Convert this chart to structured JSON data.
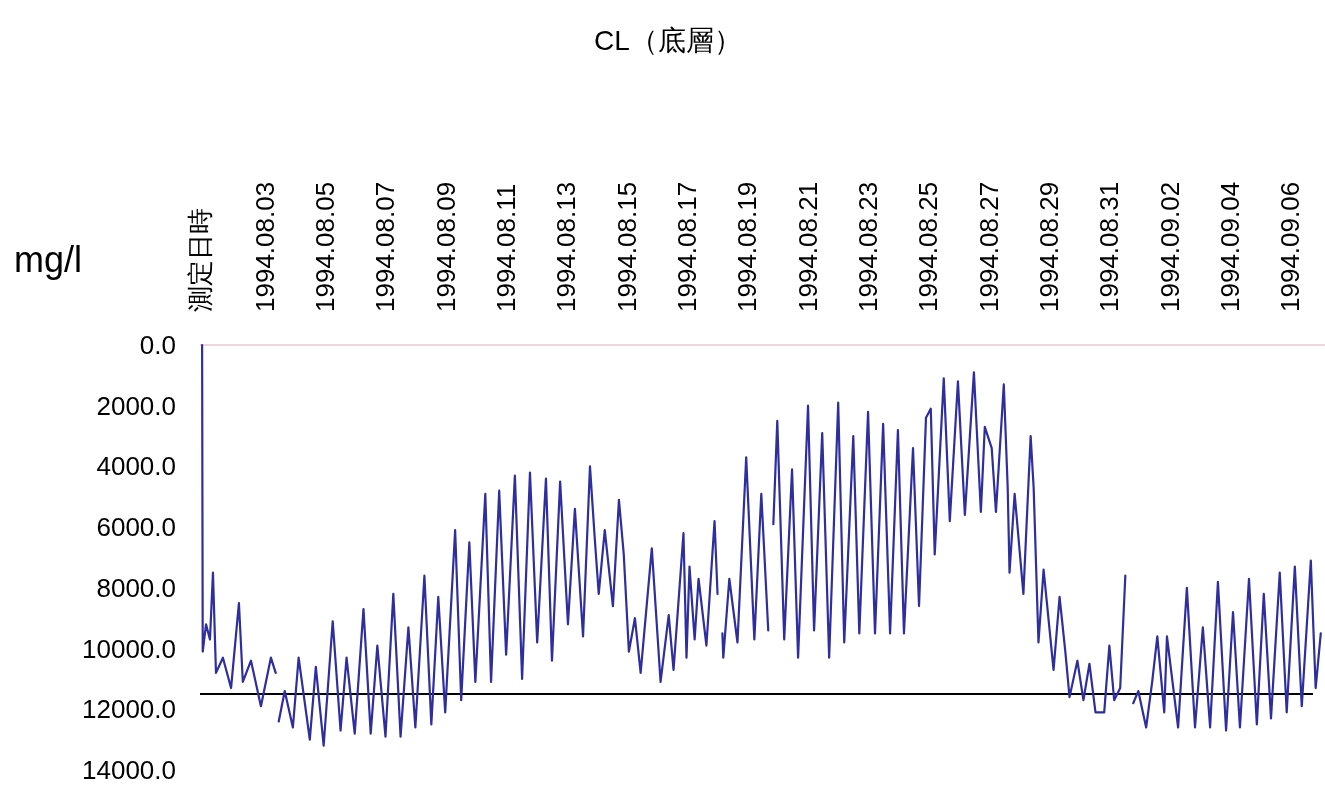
{
  "chart_data": {
    "type": "line",
    "title": "CL（底層）",
    "ylabel": "mg/l",
    "xlim": [
      "1994-07-31T20:24",
      "1994-09-07T03:36"
    ],
    "xticks": [
      {
        "value": "1994-07-31T20:24",
        "label": "測定日時"
      },
      {
        "value": "1994-08-03",
        "label": "1994.08.03"
      },
      {
        "value": "1994-08-05",
        "label": "1994.08.05"
      },
      {
        "value": "1994-08-07",
        "label": "1994.08.07"
      },
      {
        "value": "1994-08-09",
        "label": "1994.08.09"
      },
      {
        "value": "1994-08-11",
        "label": "1994.08.11"
      },
      {
        "value": "1994-08-13",
        "label": "1994.08.13"
      },
      {
        "value": "1994-08-15",
        "label": "1994.08.15"
      },
      {
        "value": "1994-08-17",
        "label": "1994.08.17"
      },
      {
        "value": "1994-08-19",
        "label": "1994.08.19"
      },
      {
        "value": "1994-08-21",
        "label": "1994.08.21"
      },
      {
        "value": "1994-08-23",
        "label": "1994.08.23"
      },
      {
        "value": "1994-08-25",
        "label": "1994.08.25"
      },
      {
        "value": "1994-08-27",
        "label": "1994.08.27"
      },
      {
        "value": "1994-08-29",
        "label": "1994.08.29"
      },
      {
        "value": "1994-08-31",
        "label": "1994.08.31"
      },
      {
        "value": "1994-09-02",
        "label": "1994.09.02"
      },
      {
        "value": "1994-09-04",
        "label": "1994.09.04"
      },
      {
        "value": "1994-09-06",
        "label": "1994.09.06"
      }
    ],
    "ylim": [
      14000,
      0
    ],
    "yticks": [
      {
        "value": 0,
        "label": "0.0"
      },
      {
        "value": 2000,
        "label": "2000.0"
      },
      {
        "value": 4000,
        "label": "4000.0"
      },
      {
        "value": 6000,
        "label": "6000.0"
      },
      {
        "value": 8000,
        "label": "8000.0"
      },
      {
        "value": 10000,
        "label": "10000.0"
      },
      {
        "value": 12000,
        "label": "12000.0"
      },
      {
        "value": 14000,
        "label": "14000.0"
      }
    ],
    "ref_lines": [
      {
        "axis": "y",
        "value": 11500,
        "color": "#000000"
      }
    ],
    "marker": "none",
    "line_style": "solid",
    "series": [
      {
        "color": "#2e2e9e",
        "x": [
          "1994-07-31T22:05",
          "1994-07-31T22:34",
          "1994-08-01T01:12",
          "1994-08-01T04:19",
          "1994-08-01T06:43",
          "1994-08-01T09:07",
          "1994-08-01T14:38",
          "1994-08-01T21:07",
          "1994-08-02T03:22",
          "1994-08-02T06:29",
          "1994-08-02T12:58",
          "1994-08-02T20:53",
          "1994-08-03T04:48",
          "1994-08-03T08:38",
          "1994-08-03T09:50",
          "1994-08-03T11:02",
          "1994-08-03T15:50",
          "1994-08-03T22:19",
          "1994-08-04T02:53",
          "1994-08-04T11:46",
          "1994-08-04T16:34",
          "1994-08-04T22:48",
          "1994-08-05T06:00",
          "1994-08-05T12:14",
          "1994-08-05T17:02",
          "1994-08-05T23:31",
          "1994-08-06T06:29",
          "1994-08-06T12:14",
          "1994-08-06T17:31",
          "1994-08-07T00:00",
          "1994-08-07T06:14",
          "1994-08-07T12:00",
          "1994-08-07T18:14",
          "1994-08-07T23:46",
          "1994-08-08T06:58",
          "1994-08-08T12:29",
          "1994-08-08T18:00",
          "1994-08-08T23:31",
          "1994-08-09T07:26",
          "1994-08-09T12:14",
          "1994-08-09T18:43",
          "1994-08-09T23:31",
          "1994-08-10T07:26",
          "1994-08-10T12:00",
          "1994-08-10T18:29",
          "1994-08-11T00:00",
          "1994-08-11T06:58",
          "1994-08-11T12:43",
          "1994-08-11T18:58",
          "1994-08-12T00:43",
          "1994-08-12T07:41",
          "1994-08-12T12:29",
          "1994-08-12T18:58",
          "1994-08-13T01:12",
          "1994-08-13T06:43",
          "1994-08-13T13:12",
          "1994-08-13T18:43",
          "1994-08-13T22:34",
          "1994-08-14T01:41",
          "1994-08-14T06:29",
          "1994-08-14T12:58",
          "1994-08-14T17:46",
          "1994-08-14T21:36",
          "1994-08-15T01:41",
          "1994-08-15T06:29",
          "1994-08-15T11:02",
          "1994-08-15T19:55",
          "1994-08-16T02:53",
          "1994-08-16T09:22",
          "1994-08-16T13:12",
          "1994-08-16T21:07",
          "1994-08-16T23:31",
          "1994-08-17T01:55",
          "1994-08-17T06:00",
          "1994-08-17T09:07",
          "1994-08-17T15:22",
          "1994-08-17T21:50",
          "1994-08-18T00:14",
          "1994-08-18T02:10",
          "1994-08-18T04:05",
          "1994-08-18T04:48",
          "1994-08-18T09:36",
          "1994-08-18T16:05",
          "1994-08-18T23:02",
          "1994-08-19T05:31",
          "1994-08-19T11:02",
          "1994-08-19T16:34",
          "1994-08-19T18:43",
          "1994-08-19T20:38",
          "1994-08-19T23:46",
          "1994-08-20T05:17",
          "1994-08-20T11:31",
          "1994-08-20T16:19",
          "1994-08-21T00:14",
          "1994-08-21T05:02",
          "1994-08-21T11:31",
          "1994-08-21T17:02",
          "1994-08-22T00:14",
          "1994-08-22T05:02",
          "1994-08-22T12:14",
          "1994-08-22T17:02",
          "1994-08-23T00:00",
          "1994-08-23T05:31",
          "1994-08-23T12:00",
          "1994-08-23T17:31",
          "1994-08-23T23:46",
          "1994-08-24T04:34",
          "1994-08-24T11:46",
          "1994-08-24T16:34",
          "1994-08-24T22:05",
          "1994-08-25T01:55",
          "1994-08-25T05:02",
          "1994-08-25T12:14",
          "1994-08-25T17:02",
          "1994-08-25T23:31",
          "1994-08-26T05:02",
          "1994-08-26T12:14",
          "1994-08-26T17:46",
          "1994-08-26T20:53",
          "1994-08-27T02:24",
          "1994-08-27T05:46",
          "1994-08-27T12:00",
          "1994-08-27T15:07",
          "1994-08-27T16:34",
          "1994-08-27T20:38",
          "1994-08-28T03:36",
          "1994-08-28T09:22",
          "1994-08-28T11:46",
          "1994-08-28T15:36",
          "1994-08-28T19:41",
          "1994-08-29T03:36",
          "1994-08-29T08:24",
          "1994-08-29T12:58",
          "1994-08-29T16:19",
          "1994-08-29T22:34",
          "1994-08-30T03:22",
          "1994-08-30T08:10",
          "1994-08-30T12:58",
          "1994-08-30T19:55",
          "1994-08-31T00:00",
          "1994-08-31T03:50",
          "1994-08-31T08:38",
          "1994-08-31T12:43",
          "1994-08-31T15:50",
          "1994-08-31T18:58",
          "1994-08-31T23:02",
          "1994-09-01T05:17",
          "1994-09-01T10:05",
          "1994-09-01T14:10",
          "1994-09-01T19:41",
          "1994-09-01T21:50",
          "1994-09-02T06:43",
          "1994-09-02T13:41",
          "1994-09-02T20:10",
          "1994-09-03T02:24",
          "1994-09-03T08:10",
          "1994-09-03T14:24",
          "1994-09-03T20:53",
          "1994-09-04T02:24",
          "1994-09-04T07:55",
          "1994-09-04T15:07",
          "1994-09-04T21:22",
          "1994-09-05T02:53",
          "1994-09-05T08:38",
          "1994-09-05T15:36",
          "1994-09-05T21:07",
          "1994-09-06T03:36",
          "1994-09-06T09:07",
          "1994-09-06T16:19",
          "1994-09-06T20:10",
          "1994-09-07T00:14"
        ],
        "values": [
          0,
          10100,
          9200,
          9700,
          7500,
          10800,
          10300,
          11300,
          8500,
          11100,
          10400,
          11900,
          10300,
          10800,
          null,
          12400,
          11400,
          12600,
          10300,
          13000,
          10600,
          13200,
          9100,
          12700,
          10300,
          12800,
          8700,
          12800,
          9900,
          12900,
          8200,
          12900,
          9300,
          12600,
          7600,
          12500,
          8300,
          12100,
          6100,
          11700,
          6500,
          11100,
          4900,
          11100,
          4800,
          10200,
          4300,
          11000,
          4200,
          9800,
          4400,
          10400,
          4500,
          9200,
          5400,
          9600,
          4000,
          6400,
          8200,
          6100,
          8600,
          5100,
          6900,
          10100,
          9000,
          10800,
          6700,
          11100,
          8900,
          10700,
          6200,
          10300,
          7300,
          9700,
          7700,
          9900,
          5800,
          8200,
          null,
          9500,
          10300,
          7700,
          9800,
          3700,
          9700,
          4900,
          9400,
          null,
          5900,
          2500,
          9700,
          4100,
          10300,
          2000,
          9400,
          2900,
          10300,
          1900,
          9800,
          3000,
          9500,
          2200,
          9500,
          2600,
          9500,
          2800,
          9500,
          3400,
          8600,
          2400,
          2100,
          6900,
          1100,
          5800,
          1200,
          5600,
          900,
          5500,
          2700,
          3400,
          5500,
          1300,
          4700,
          7500,
          4900,
          8200,
          3000,
          4700,
          9800,
          7400,
          10700,
          8300,
          10100,
          11600,
          10400,
          11700,
          10500,
          12100,
          12100,
          9900,
          11700,
          11300,
          7600,
          null,
          11800,
          11400,
          12600,
          11100,
          9600,
          12100,
          9600,
          12600,
          8000,
          12600,
          9300,
          12600,
          7800,
          12700,
          8800,
          12600,
          7700,
          12500,
          8200,
          12300,
          7500,
          12100,
          7300,
          11900,
          7100,
          11300,
          9500
        ]
      }
    ]
  }
}
